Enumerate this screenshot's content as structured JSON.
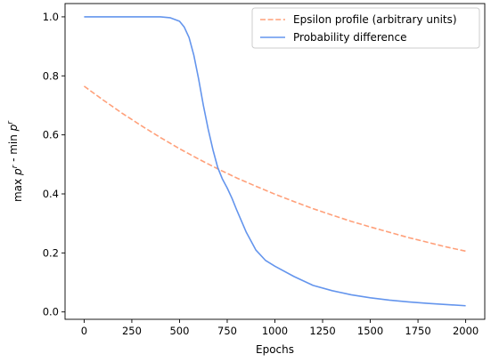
{
  "chart_data": {
    "type": "line",
    "xlabel": "Epochs",
    "ylabel": "max p^r - min p^r",
    "xlim": [
      -100,
      2100
    ],
    "ylim": [
      -0.025,
      1.045
    ],
    "xticks": [
      0,
      250,
      500,
      750,
      1000,
      1250,
      1500,
      1750,
      2000
    ],
    "yticks": [
      0.0,
      0.2,
      0.4,
      0.6,
      0.8,
      1.0
    ],
    "xtick_labels": [
      "0",
      "250",
      "500",
      "750",
      "1000",
      "1250",
      "1500",
      "1750",
      "2000"
    ],
    "ytick_labels": [
      "0.0",
      "0.2",
      "0.4",
      "0.6",
      "0.8",
      "1.0"
    ],
    "grid": false,
    "legend_position": "top-right",
    "series": [
      {
        "name": "Epsilon profile (arbitrary units)",
        "color": "#FFA07A",
        "style": "dashed",
        "x": [
          0,
          100,
          200,
          300,
          400,
          500,
          600,
          700,
          800,
          900,
          1000,
          1100,
          1200,
          1300,
          1400,
          1500,
          1600,
          1700,
          1800,
          1900,
          2000
        ],
        "y": [
          0.765,
          0.718,
          0.673,
          0.631,
          0.591,
          0.553,
          0.518,
          0.485,
          0.454,
          0.426,
          0.399,
          0.374,
          0.35,
          0.328,
          0.307,
          0.288,
          0.27,
          0.252,
          0.236,
          0.22,
          0.206
        ]
      },
      {
        "name": "Probability difference",
        "color": "#6495ED",
        "style": "solid",
        "x": [
          0,
          100,
          200,
          300,
          400,
          450,
          500,
          525,
          550,
          575,
          600,
          625,
          650,
          675,
          700,
          725,
          750,
          775,
          800,
          850,
          900,
          950,
          1000,
          1100,
          1200,
          1300,
          1400,
          1500,
          1600,
          1700,
          1800,
          1900,
          2000
        ],
        "y": [
          1.0,
          1.0,
          1.0,
          1.0,
          1.0,
          0.997,
          0.985,
          0.965,
          0.93,
          0.87,
          0.79,
          0.7,
          0.62,
          0.55,
          0.49,
          0.45,
          0.42,
          0.385,
          0.345,
          0.27,
          0.21,
          0.175,
          0.155,
          0.12,
          0.09,
          0.072,
          0.058,
          0.048,
          0.04,
          0.034,
          0.029,
          0.025,
          0.021
        ]
      }
    ]
  }
}
